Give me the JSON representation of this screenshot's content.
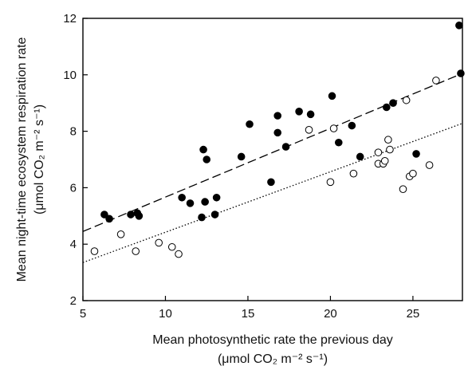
{
  "chart_data": {
    "type": "scatter",
    "title": "",
    "xlabel_line1": "Mean photosynthetic rate the previous day",
    "xlabel_line2": "(μmol CO₂ m⁻² s⁻¹)",
    "ylabel_line1": "Mean night-time ecosystem respiration rate",
    "ylabel_line2": "(μmol CO₂ m⁻² s⁻¹)",
    "xlim": [
      5,
      28
    ],
    "ylim": [
      2,
      12
    ],
    "xticks": [
      5,
      10,
      15,
      20,
      25
    ],
    "yticks": [
      2,
      4,
      6,
      8,
      10,
      12
    ],
    "grid": false,
    "series": [
      {
        "marker": "filled-circle",
        "color": "#000000",
        "points": [
          [
            6.3,
            5.05
          ],
          [
            6.6,
            4.9
          ],
          [
            7.9,
            5.05
          ],
          [
            8.3,
            5.1
          ],
          [
            8.4,
            5.0
          ],
          [
            11.0,
            5.65
          ],
          [
            11.5,
            5.45
          ],
          [
            12.2,
            4.95
          ],
          [
            12.3,
            7.35
          ],
          [
            12.4,
            5.5
          ],
          [
            12.5,
            7.0
          ],
          [
            13.0,
            5.05
          ],
          [
            13.1,
            5.65
          ],
          [
            14.6,
            7.1
          ],
          [
            15.1,
            8.25
          ],
          [
            16.4,
            6.2
          ],
          [
            16.8,
            8.55
          ],
          [
            16.8,
            7.95
          ],
          [
            17.3,
            7.45
          ],
          [
            18.1,
            8.7
          ],
          [
            18.8,
            8.6
          ],
          [
            20.1,
            9.25
          ],
          [
            20.5,
            7.6
          ],
          [
            21.3,
            8.2
          ],
          [
            21.8,
            7.1
          ],
          [
            23.4,
            8.85
          ],
          [
            23.8,
            9.0
          ],
          [
            25.2,
            7.2
          ],
          [
            27.8,
            11.75
          ],
          [
            27.9,
            10.05
          ]
        ]
      },
      {
        "marker": "open-circle",
        "color": "#000000",
        "points": [
          [
            5.7,
            3.75
          ],
          [
            7.3,
            4.35
          ],
          [
            8.2,
            3.75
          ],
          [
            9.6,
            4.05
          ],
          [
            10.4,
            3.9
          ],
          [
            10.8,
            3.65
          ],
          [
            18.7,
            8.05
          ],
          [
            20.0,
            6.2
          ],
          [
            20.2,
            8.1
          ],
          [
            21.4,
            6.5
          ],
          [
            22.9,
            7.25
          ],
          [
            22.9,
            6.85
          ],
          [
            23.2,
            6.85
          ],
          [
            23.3,
            6.95
          ],
          [
            23.5,
            7.7
          ],
          [
            23.6,
            7.35
          ],
          [
            24.4,
            5.95
          ],
          [
            24.6,
            9.1
          ],
          [
            24.8,
            6.4
          ],
          [
            25.0,
            6.5
          ],
          [
            26.0,
            6.8
          ],
          [
            26.4,
            9.8
          ]
        ]
      }
    ],
    "fit_lines": [
      {
        "style": "dashed",
        "color": "#000000",
        "x": [
          5,
          28
        ],
        "y": [
          4.45,
          10.05
        ]
      },
      {
        "style": "dotted",
        "color": "#000000",
        "x": [
          5,
          28
        ],
        "y": [
          3.35,
          8.28
        ]
      }
    ]
  }
}
